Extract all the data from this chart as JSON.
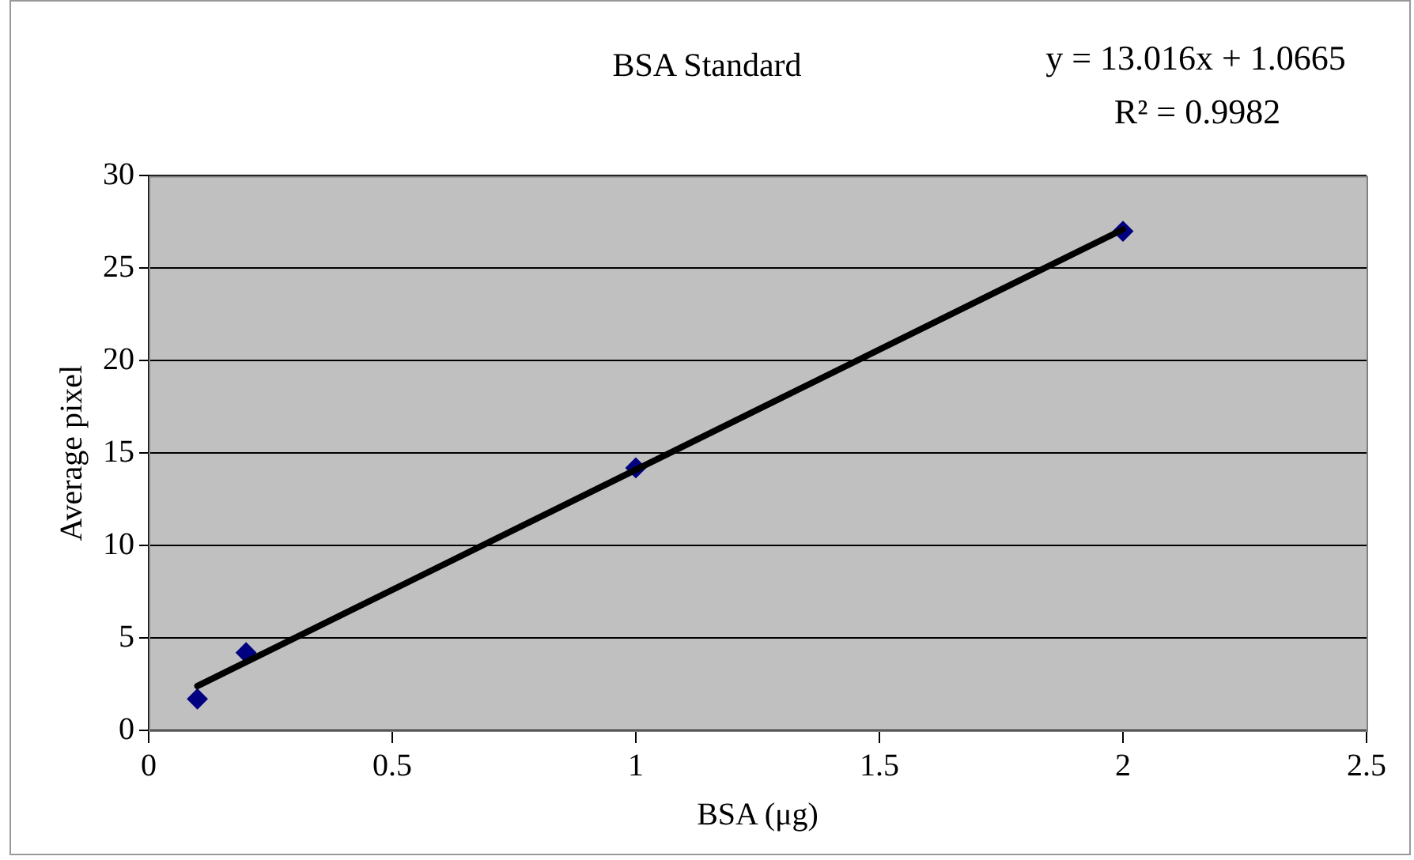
{
  "chart_data": {
    "type": "scatter",
    "title": "BSA Standard",
    "xlabel": "BSA (μg)",
    "ylabel": "Average pixel",
    "annotations": [
      "y = 13.016x + 1.0665",
      "R² = 0.9982"
    ],
    "series": [
      {
        "type": "scatter",
        "color": "#000080",
        "x": [
          0.1,
          0.2,
          1,
          2
        ],
        "values": [
          1.7,
          4.2,
          14.2,
          27.0
        ],
        "marker": "diamond"
      },
      {
        "type": "line",
        "color": "#000000",
        "x": [
          0.1,
          2
        ],
        "values": [
          2.4,
          27.1
        ],
        "marker": "none",
        "line_style": "solid"
      }
    ],
    "xlim": [
      0,
      2.5
    ],
    "xticks": [
      0,
      0.5,
      1,
      1.5,
      2,
      2.5
    ],
    "ylim": [
      0,
      30
    ],
    "yticks": [
      0,
      5,
      10,
      15,
      20,
      25,
      30
    ],
    "grid": "y",
    "legend": false
  }
}
